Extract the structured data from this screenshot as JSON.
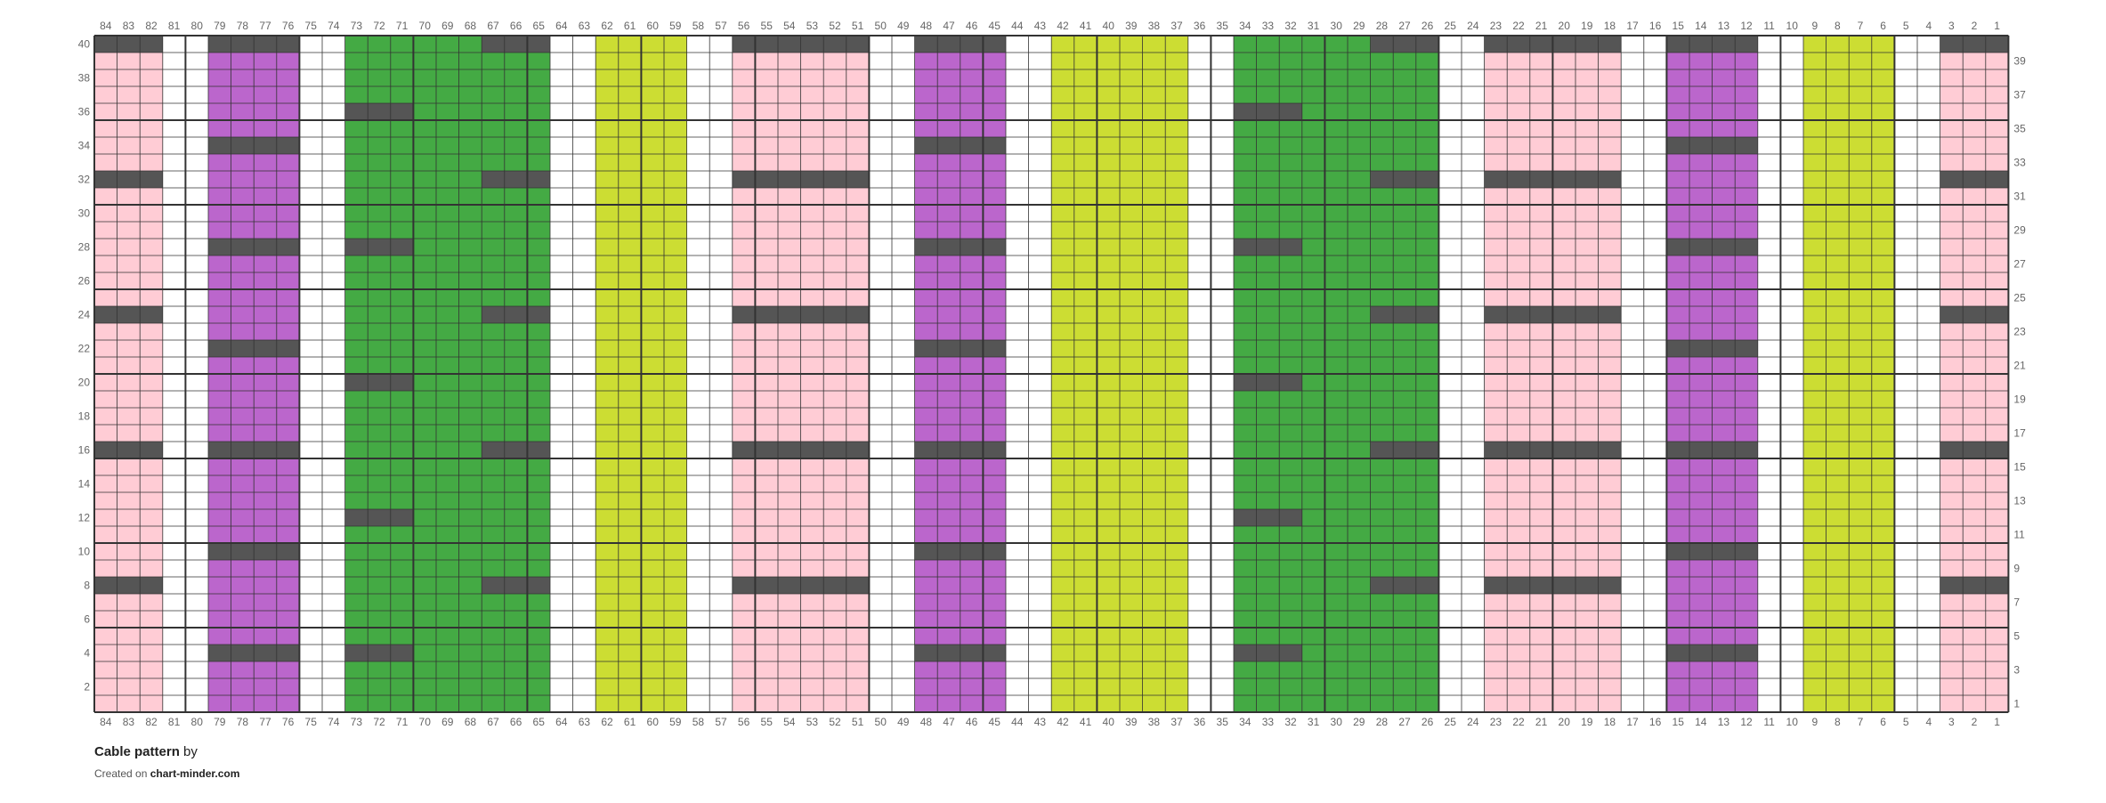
{
  "footer": {
    "title": "Cable pattern",
    "by": "by",
    "created_on": "Created on",
    "site": "chart-minder.com"
  },
  "colors": {
    "background": "#ffffff",
    "pink": "#ffccd5",
    "purple": "#bb66cc",
    "green": "#44aa44",
    "lime": "#ccdd33",
    "cable": "#555555",
    "grid_line": "#333333",
    "label_text": "#666666"
  },
  "chart_data": {
    "type": "knitting-chart",
    "columns": 84,
    "rows": 40,
    "column_numbering": "right-to-left (1 at right, 84 at left)",
    "row_numbering": "bottom-to-top; even rows labelled on left, odd rows on right",
    "stitch_group_size": 5,
    "column_colors": [
      {
        "from": 1,
        "to": 3,
        "color": "pink"
      },
      {
        "from": 4,
        "to": 5,
        "color": "white"
      },
      {
        "from": 6,
        "to": 9,
        "color": "lime"
      },
      {
        "from": 10,
        "to": 11,
        "color": "white"
      },
      {
        "from": 12,
        "to": 15,
        "color": "purple"
      },
      {
        "from": 16,
        "to": 17,
        "color": "white"
      },
      {
        "from": 18,
        "to": 23,
        "color": "pink"
      },
      {
        "from": 24,
        "to": 25,
        "color": "white"
      },
      {
        "from": 26,
        "to": 34,
        "color": "green"
      },
      {
        "from": 35,
        "to": 36,
        "color": "white"
      },
      {
        "from": 37,
        "to": 42,
        "color": "lime"
      },
      {
        "from": 43,
        "to": 44,
        "color": "white"
      },
      {
        "from": 45,
        "to": 48,
        "color": "purple"
      },
      {
        "from": 49,
        "to": 50,
        "color": "white"
      },
      {
        "from": 51,
        "to": 56,
        "color": "pink"
      },
      {
        "from": 57,
        "to": 58,
        "color": "white"
      },
      {
        "from": 59,
        "to": 62,
        "color": "lime"
      },
      {
        "from": 63,
        "to": 64,
        "color": "white"
      },
      {
        "from": 65,
        "to": 73,
        "color": "green"
      },
      {
        "from": 74,
        "to": 75,
        "color": "white"
      },
      {
        "from": 76,
        "to": 79,
        "color": "purple"
      },
      {
        "from": 80,
        "to": 81,
        "color": "white"
      },
      {
        "from": 82,
        "to": 84,
        "color": "pink"
      }
    ],
    "cable_rows": [
      {
        "col_from": 82,
        "col_to": 84,
        "rows": [
          8,
          16,
          24,
          32,
          40
        ]
      },
      {
        "col_from": 1,
        "col_to": 3,
        "rows": [
          8,
          16,
          24,
          32,
          40
        ]
      },
      {
        "col_from": 76,
        "col_to": 79,
        "rows": [
          4,
          10,
          16,
          22,
          28,
          34,
          40
        ]
      },
      {
        "col_from": 45,
        "col_to": 48,
        "rows": [
          4,
          10,
          16,
          22,
          28,
          34,
          40
        ]
      },
      {
        "col_from": 12,
        "col_to": 15,
        "rows": [
          4,
          10,
          16,
          22,
          28,
          34,
          40
        ]
      },
      {
        "col_from": 71,
        "col_to": 73,
        "rows": [
          4,
          12,
          20,
          28,
          36
        ]
      },
      {
        "col_from": 32,
        "col_to": 34,
        "rows": [
          4,
          12,
          20,
          28,
          36
        ]
      },
      {
        "col_from": 65,
        "col_to": 67,
        "rows": [
          8,
          16,
          24,
          32,
          40
        ]
      },
      {
        "col_from": 26,
        "col_to": 28,
        "rows": [
          8,
          16,
          24,
          32,
          40
        ]
      },
      {
        "col_from": 51,
        "col_to": 56,
        "rows": [
          8,
          16,
          24,
          32,
          40
        ]
      },
      {
        "col_from": 18,
        "col_to": 23,
        "rows": [
          8,
          16,
          24,
          32,
          40
        ]
      }
    ]
  }
}
